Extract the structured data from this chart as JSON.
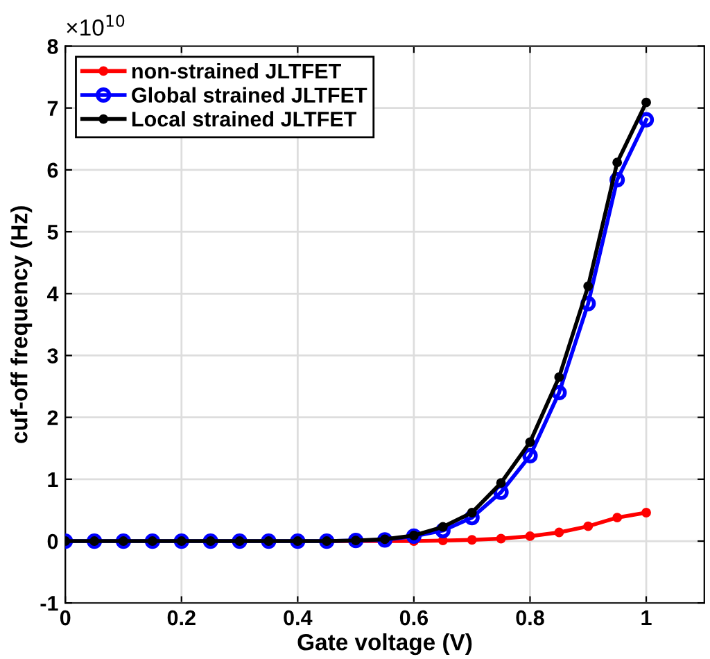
{
  "chart_data": {
    "type": "line",
    "xlabel": "Gate voltage (V)",
    "ylabel": "cuf-off frequency (Hz)",
    "annotations": [
      "×10$^{10}$"
    ],
    "x": [
      0,
      0.05,
      0.1,
      0.15,
      0.2,
      0.25,
      0.3,
      0.35,
      0.4,
      0.45,
      0.5,
      0.55,
      0.6,
      0.65,
      0.7,
      0.75,
      0.8,
      0.85,
      0.9,
      0.95,
      1.0
    ],
    "series": [
      {
        "name": "non-strained JLTFET",
        "color": "#ff0000",
        "marker": "circle",
        "values": [
          null,
          null,
          null,
          null,
          null,
          null,
          null,
          null,
          null,
          0,
          0,
          0,
          0,
          0.01,
          0.02,
          0.04,
          0.08,
          0.14,
          0.24,
          0.38,
          0.46
        ]
      },
      {
        "name": "Global strained JLTFET",
        "color": "#0000ff",
        "marker": "circle",
        "values": [
          0,
          0,
          0,
          0,
          0,
          0,
          0,
          0,
          0,
          0,
          0.01,
          0.02,
          0.08,
          0.17,
          0.38,
          0.79,
          1.38,
          2.4,
          3.84,
          5.84,
          6.81
        ]
      },
      {
        "name": "Local strained JLTFET",
        "color": "#000000",
        "marker": "circle",
        "values": [
          0,
          0,
          0,
          0,
          0,
          0,
          0,
          0,
          0,
          0,
          0.01,
          0.03,
          0.09,
          0.23,
          0.46,
          0.94,
          1.6,
          2.65,
          4.12,
          6.12,
          7.09
        ]
      }
    ],
    "xlim": [
      0,
      1.1
    ],
    "xticks": [
      0,
      0.2,
      0.4,
      0.6,
      0.8,
      1
    ],
    "ylim": [
      -1,
      8
    ],
    "yticks": [
      -1,
      0,
      1,
      2,
      3,
      4,
      5,
      6,
      7,
      8
    ],
    "grid": true,
    "legend": "top left",
    "line_style": "solid"
  }
}
